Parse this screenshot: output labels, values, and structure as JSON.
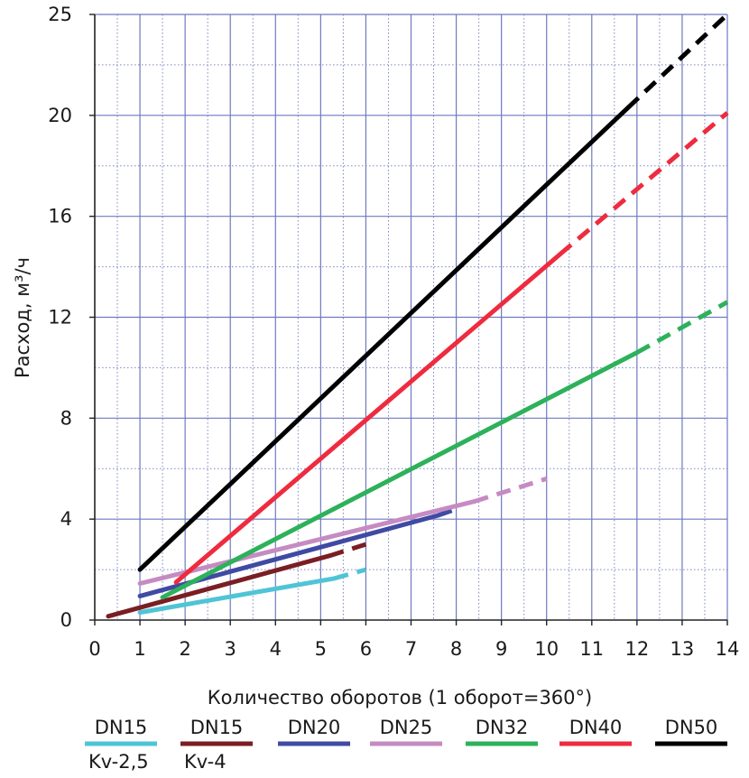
{
  "chart_data": {
    "type": "line",
    "title": "",
    "xlabel": "Количество оборотов (1 оборот=360°)",
    "ylabel": "Расход, м³/ч",
    "xlim": [
      0,
      14
    ],
    "ylim": [
      0,
      24
    ],
    "x_ticks": [
      0,
      1,
      2,
      3,
      4,
      5,
      6,
      7,
      8,
      9,
      10,
      11,
      12,
      13,
      14
    ],
    "y_ticks": [
      0,
      4,
      8,
      12,
      16,
      20,
      25
    ],
    "x_tick_labels": [
      "0",
      "1",
      "2",
      "3",
      "4",
      "5",
      "6",
      "7",
      "8",
      "9",
      "10",
      "11",
      "12",
      "13",
      "14"
    ],
    "y_tick_labels": [
      "0",
      "4",
      "8",
      "12",
      "16",
      "20",
      "25"
    ],
    "grid": "major solid, minor dotted",
    "legend_position": "bottom",
    "series": [
      {
        "name": "DN15",
        "subname": "Kv-2,5",
        "color": "#4fc4d6",
        "solid": [
          [
            1,
            0.3
          ],
          [
            5.3,
            1.65
          ]
        ],
        "dashed": [
          [
            5.3,
            1.65
          ],
          [
            6,
            2.0
          ]
        ]
      },
      {
        "name": "DN15",
        "subname": "Kv-4",
        "color": "#7a1e23",
        "solid": [
          [
            0.3,
            0.15
          ],
          [
            5.2,
            2.55
          ]
        ],
        "dashed": [
          [
            5.2,
            2.55
          ],
          [
            6,
            3.0
          ]
        ]
      },
      {
        "name": "DN20",
        "subname": "",
        "color": "#3f4aa3",
        "solid": [
          [
            1,
            0.95
          ],
          [
            7.6,
            4.15
          ]
        ],
        "dashed": [
          [
            7.6,
            4.15
          ],
          [
            8,
            4.4
          ]
        ]
      },
      {
        "name": "DN25",
        "subname": "",
        "color": "#c58bc2",
        "solid": [
          [
            1,
            1.45
          ],
          [
            8.4,
            4.7
          ]
        ],
        "dashed": [
          [
            8.4,
            4.7
          ],
          [
            10,
            5.6
          ]
        ]
      },
      {
        "name": "DN32",
        "subname": "",
        "color": "#2db15a",
        "solid": [
          [
            1.5,
            0.9
          ],
          [
            12,
            10.6
          ]
        ],
        "dashed": [
          [
            12,
            10.6
          ],
          [
            14,
            12.6
          ]
        ]
      },
      {
        "name": "DN40",
        "subname": "",
        "color": "#ee2b3f",
        "solid": [
          [
            1.8,
            1.5
          ],
          [
            10.3,
            14.5
          ]
        ],
        "dashed": [
          [
            10.3,
            14.5
          ],
          [
            14,
            20.1
          ]
        ]
      },
      {
        "name": "DN50",
        "subname": "",
        "color": "#000000",
        "solid": [
          [
            1,
            2.0
          ],
          [
            11.8,
            20.3
          ]
        ],
        "dashed": [
          [
            11.8,
            20.3
          ],
          [
            14,
            24.0
          ]
        ]
      }
    ]
  }
}
